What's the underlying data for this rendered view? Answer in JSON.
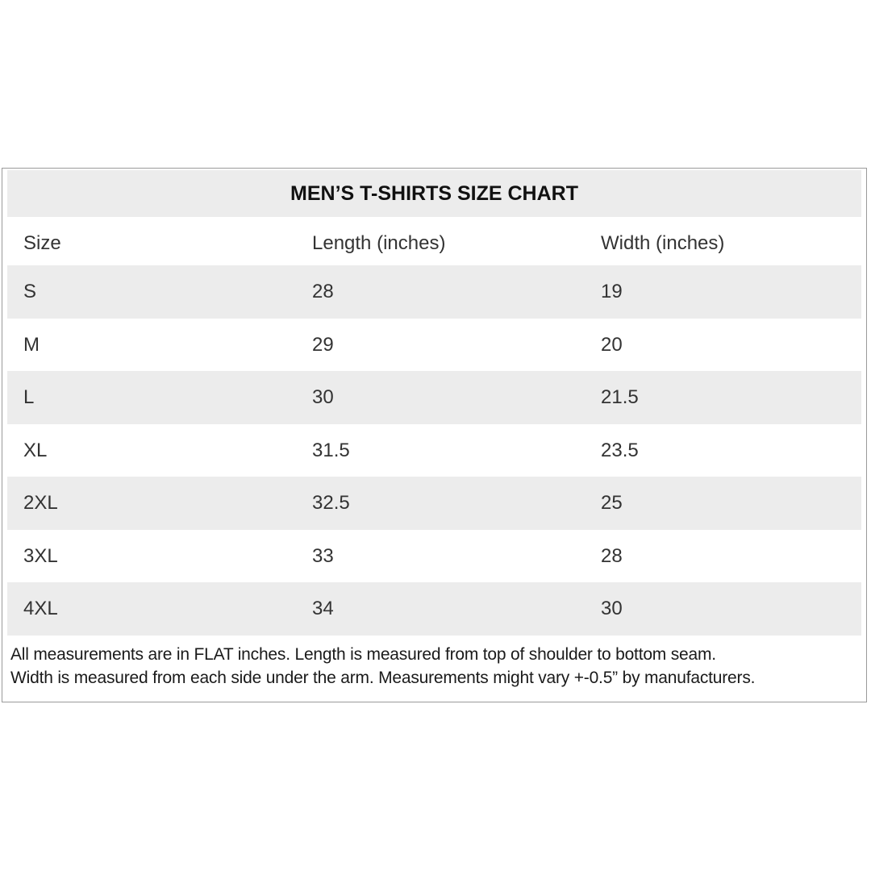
{
  "title": "MEN’S T-SHIRTS SIZE CHART",
  "headers": [
    "Size",
    "Length (inches)",
    "Width (inches)"
  ],
  "rows": [
    [
      "S",
      "28",
      "19"
    ],
    [
      "M",
      "29",
      "20"
    ],
    [
      "L",
      "30",
      "21.5"
    ],
    [
      "XL",
      "31.5",
      "23.5"
    ],
    [
      "2XL",
      "32.5",
      "25"
    ],
    [
      "3XL",
      "33",
      "28"
    ],
    [
      "4XL",
      "34",
      "30"
    ]
  ],
  "footnote": [
    "All measurements are in FLAT inches. Length is measured from top of shoulder to bottom seam.",
    "Width is measured from each side under the arm. Measurements might vary +-0.5” by manufacturers."
  ]
}
